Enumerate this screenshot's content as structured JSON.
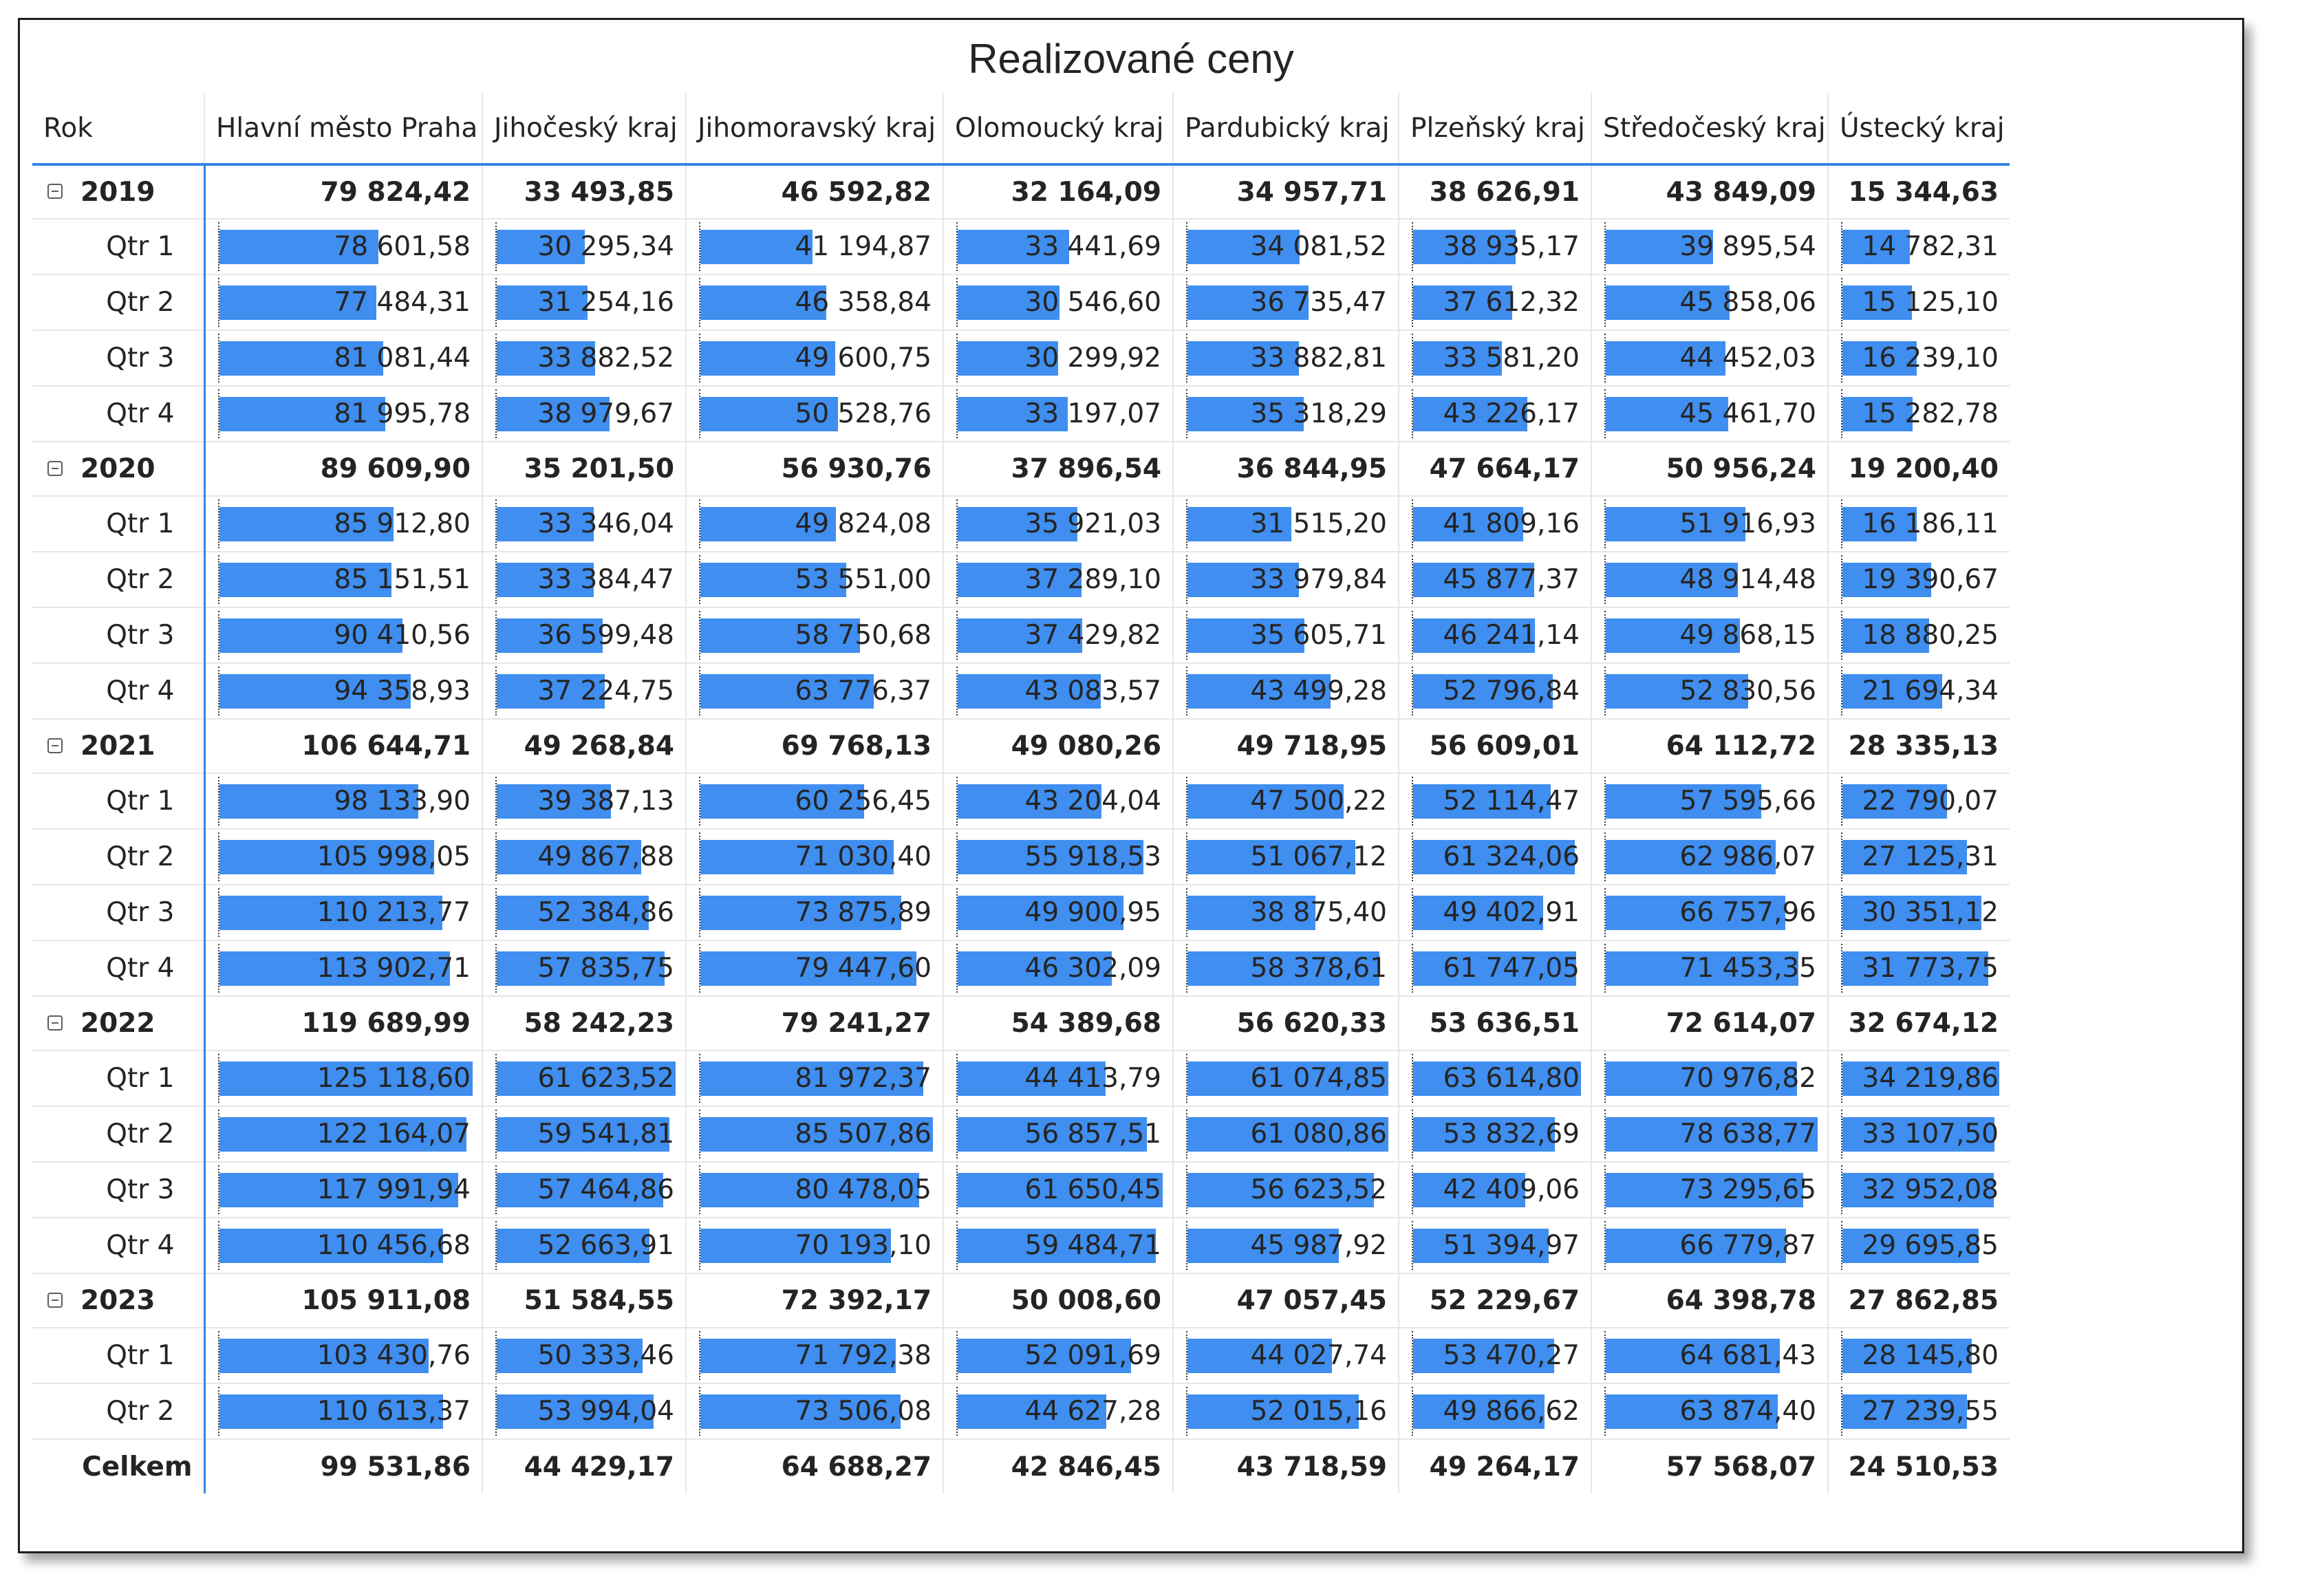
{
  "title": "Realizované ceny",
  "columns": [
    "Rok",
    "Hlavní město Praha",
    "Jihočeský kraj",
    "Jihomoravský kraj",
    "Olomoucký kraj",
    "Pardubický kraj",
    "Plzeňský kraj",
    "Středočeský kraj",
    "Ústecký kraj"
  ],
  "bar_color": "#3f8ef0",
  "bar_max_fraction": [
    125118.6,
    61623.52,
    85507.86,
    61650.45,
    61080.86,
    63614.8,
    78638.77,
    34219.86
  ],
  "rows": [
    {
      "type": "year",
      "label": "2019",
      "values": [
        "79 824,42",
        "33 493,85",
        "46 592,82",
        "32 164,09",
        "34 957,71",
        "38 626,91",
        "43 849,09",
        "15 344,63"
      ]
    },
    {
      "type": "quarter",
      "label": "Qtr 1",
      "values": [
        "78 601,58",
        "30 295,34",
        "41 194,87",
        "33 441,69",
        "34 081,52",
        "38 935,17",
        "39 895,54",
        "14 782,31"
      ],
      "numbers": [
        78601.58,
        30295.34,
        41194.87,
        33441.69,
        34081.52,
        38935.17,
        39895.54,
        14782.31
      ]
    },
    {
      "type": "quarter",
      "label": "Qtr 2",
      "values": [
        "77 484,31",
        "31 254,16",
        "46 358,84",
        "30 546,60",
        "36 735,47",
        "37 612,32",
        "45 858,06",
        "15 125,10"
      ],
      "numbers": [
        77484.31,
        31254.16,
        46358.84,
        30546.6,
        36735.47,
        37612.32,
        45858.06,
        15125.1
      ]
    },
    {
      "type": "quarter",
      "label": "Qtr 3",
      "values": [
        "81 081,44",
        "33 882,52",
        "49 600,75",
        "30 299,92",
        "33 882,81",
        "33 581,20",
        "44 452,03",
        "16 239,10"
      ],
      "numbers": [
        81081.44,
        33882.52,
        49600.75,
        30299.92,
        33882.81,
        33581.2,
        44452.03,
        16239.1
      ]
    },
    {
      "type": "quarter",
      "label": "Qtr 4",
      "values": [
        "81 995,78",
        "38 979,67",
        "50 528,76",
        "33 197,07",
        "35 318,29",
        "43 226,17",
        "45 461,70",
        "15 282,78"
      ],
      "numbers": [
        81995.78,
        38979.67,
        50528.76,
        33197.07,
        35318.29,
        43226.17,
        45461.7,
        15282.78
      ]
    },
    {
      "type": "year",
      "label": "2020",
      "values": [
        "89 609,90",
        "35 201,50",
        "56 930,76",
        "37 896,54",
        "36 844,95",
        "47 664,17",
        "50 956,24",
        "19 200,40"
      ]
    },
    {
      "type": "quarter",
      "label": "Qtr 1",
      "values": [
        "85 912,80",
        "33 346,04",
        "49 824,08",
        "35 921,03",
        "31 515,20",
        "41 809,16",
        "51 916,93",
        "16 186,11"
      ],
      "numbers": [
        85912.8,
        33346.04,
        49824.08,
        35921.03,
        31515.2,
        41809.16,
        51916.93,
        16186.11
      ]
    },
    {
      "type": "quarter",
      "label": "Qtr 2",
      "values": [
        "85 151,51",
        "33 384,47",
        "53 551,00",
        "37 289,10",
        "33 979,84",
        "45 877,37",
        "48 914,48",
        "19 390,67"
      ],
      "numbers": [
        85151.51,
        33384.47,
        53551.0,
        37289.1,
        33979.84,
        45877.37,
        48914.48,
        19390.67
      ]
    },
    {
      "type": "quarter",
      "label": "Qtr 3",
      "values": [
        "90 410,56",
        "36 599,48",
        "58 750,68",
        "37 429,82",
        "35 605,71",
        "46 241,14",
        "49 868,15",
        "18 880,25"
      ],
      "numbers": [
        90410.56,
        36599.48,
        58750.68,
        37429.82,
        35605.71,
        46241.14,
        49868.15,
        18880.25
      ]
    },
    {
      "type": "quarter",
      "label": "Qtr 4",
      "values": [
        "94 358,93",
        "37 224,75",
        "63 776,37",
        "43 083,57",
        "43 499,28",
        "52 796,84",
        "52 830,56",
        "21 694,34"
      ],
      "numbers": [
        94358.93,
        37224.75,
        63776.37,
        43083.57,
        43499.28,
        52796.84,
        52830.56,
        21694.34
      ]
    },
    {
      "type": "year",
      "label": "2021",
      "values": [
        "106 644,71",
        "49 268,84",
        "69 768,13",
        "49 080,26",
        "49 718,95",
        "56 609,01",
        "64 112,72",
        "28 335,13"
      ]
    },
    {
      "type": "quarter",
      "label": "Qtr 1",
      "values": [
        "98 133,90",
        "39 387,13",
        "60 256,45",
        "43 204,04",
        "47 500,22",
        "52 114,47",
        "57 595,66",
        "22 790,07"
      ],
      "numbers": [
        98133.9,
        39387.13,
        60256.45,
        43204.04,
        47500.22,
        52114.47,
        57595.66,
        22790.07
      ]
    },
    {
      "type": "quarter",
      "label": "Qtr 2",
      "values": [
        "105 998,05",
        "49 867,88",
        "71 030,40",
        "55 918,53",
        "51 067,12",
        "61 324,06",
        "62 986,07",
        "27 125,31"
      ],
      "numbers": [
        105998.05,
        49867.88,
        71030.4,
        55918.53,
        51067.12,
        61324.06,
        62986.07,
        27125.31
      ]
    },
    {
      "type": "quarter",
      "label": "Qtr 3",
      "values": [
        "110 213,77",
        "52 384,86",
        "73 875,89",
        "49 900,95",
        "38 875,40",
        "49 402,91",
        "66 757,96",
        "30 351,12"
      ],
      "numbers": [
        110213.77,
        52384.86,
        73875.89,
        49900.95,
        38875.4,
        49402.91,
        66757.96,
        30351.12
      ]
    },
    {
      "type": "quarter",
      "label": "Qtr 4",
      "values": [
        "113 902,71",
        "57 835,75",
        "79 447,60",
        "46 302,09",
        "58 378,61",
        "61 747,05",
        "71 453,35",
        "31 773,75"
      ],
      "numbers": [
        113902.71,
        57835.75,
        79447.6,
        46302.09,
        58378.61,
        61747.05,
        71453.35,
        31773.75
      ]
    },
    {
      "type": "year",
      "label": "2022",
      "values": [
        "119 689,99",
        "58 242,23",
        "79 241,27",
        "54 389,68",
        "56 620,33",
        "53 636,51",
        "72 614,07",
        "32 674,12"
      ]
    },
    {
      "type": "quarter",
      "label": "Qtr 1",
      "values": [
        "125 118,60",
        "61 623,52",
        "81 972,37",
        "44 413,79",
        "61 074,85",
        "63 614,80",
        "70 976,82",
        "34 219,86"
      ],
      "numbers": [
        125118.6,
        61623.52,
        81972.37,
        44413.79,
        61074.85,
        63614.8,
        70976.82,
        34219.86
      ]
    },
    {
      "type": "quarter",
      "label": "Qtr 2",
      "values": [
        "122 164,07",
        "59 541,81",
        "85 507,86",
        "56 857,51",
        "61 080,86",
        "53 832,69",
        "78 638,77",
        "33 107,50"
      ],
      "numbers": [
        122164.07,
        59541.81,
        85507.86,
        56857.51,
        61080.86,
        53832.69,
        78638.77,
        33107.5
      ]
    },
    {
      "type": "quarter",
      "label": "Qtr 3",
      "values": [
        "117 991,94",
        "57 464,86",
        "80 478,05",
        "61 650,45",
        "56 623,52",
        "42 409,06",
        "73 295,65",
        "32 952,08"
      ],
      "numbers": [
        117991.94,
        57464.86,
        80478.05,
        61650.45,
        56623.52,
        42409.06,
        73295.65,
        32952.08
      ]
    },
    {
      "type": "quarter",
      "label": "Qtr 4",
      "values": [
        "110 456,68",
        "52 663,91",
        "70 193,10",
        "59 484,71",
        "45 987,92",
        "51 394,97",
        "66 779,87",
        "29 695,85"
      ],
      "numbers": [
        110456.68,
        52663.91,
        70193.1,
        59484.71,
        45987.92,
        51394.97,
        66779.87,
        29695.85
      ]
    },
    {
      "type": "year",
      "label": "2023",
      "values": [
        "105 911,08",
        "51 584,55",
        "72 392,17",
        "50 008,60",
        "47 057,45",
        "52 229,67",
        "64 398,78",
        "27 862,85"
      ]
    },
    {
      "type": "quarter",
      "label": "Qtr 1",
      "values": [
        "103 430,76",
        "50 333,46",
        "71 792,38",
        "52 091,69",
        "44 027,74",
        "53 470,27",
        "64 681,43",
        "28 145,80"
      ],
      "numbers": [
        103430.76,
        50333.46,
        71792.38,
        52091.69,
        44027.74,
        53470.27,
        64681.43,
        28145.8
      ]
    },
    {
      "type": "quarter",
      "label": "Qtr 2",
      "values": [
        "110 613,37",
        "53 994,04",
        "73 506,08",
        "44 627,28",
        "52 015,16",
        "49 866,62",
        "63 874,40",
        "27 239,55"
      ],
      "numbers": [
        110613.37,
        53994.04,
        73506.08,
        44627.28,
        52015.16,
        49866.62,
        63874.4,
        27239.55
      ]
    },
    {
      "type": "total",
      "label": "Celkem",
      "values": [
        "99 531,86",
        "44 429,17",
        "64 688,27",
        "42 846,45",
        "43 718,59",
        "49 264,17",
        "57 568,07",
        "24 510,53"
      ]
    }
  ]
}
